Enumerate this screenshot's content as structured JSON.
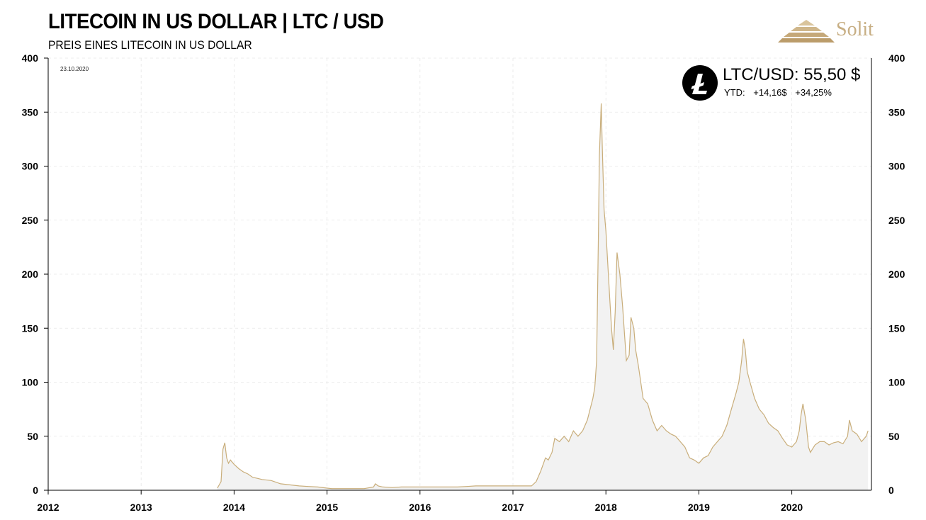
{
  "header": {
    "title": "LITECOIN IN US DOLLAR | LTC / USD",
    "subtitle": "PREIS EINES LITECOIN IN US DOLLAR",
    "date": "23.10.2020",
    "brand": "Solit"
  },
  "ticker": {
    "pair": "LTC/USD:",
    "price": "55,50 $",
    "ytd_label": "YTD:",
    "ytd_abs": "+14,16$",
    "ytd_pct": "+34,25%",
    "icon": "litecoin-icon"
  },
  "colors": {
    "line": "#c9ae7b",
    "area": "#f2f2f2",
    "grid": "#e6e6e6",
    "brand": "#c7ae83"
  },
  "chart_data": {
    "type": "area",
    "ylim": [
      0,
      400
    ],
    "xlim": [
      2012,
      2020.82
    ],
    "grid": true,
    "yticks": [
      0,
      50,
      100,
      150,
      200,
      250,
      300,
      350,
      400
    ],
    "xticks": [
      "2012",
      "2013",
      "2014",
      "2015",
      "2016",
      "2017",
      "2018",
      "2019",
      "2020"
    ],
    "series": [
      {
        "x": [
          2013.82,
          2013.86,
          2013.88,
          2013.9,
          2013.92,
          2013.94,
          2013.96,
          2014.0,
          2014.05,
          2014.1,
          2014.15,
          2014.2,
          2014.25,
          2014.3,
          2014.4,
          2014.5,
          2014.6,
          2014.7,
          2014.8,
          2014.9,
          2015.0,
          2015.05,
          2015.1,
          2015.2,
          2015.3,
          2015.4,
          2015.5,
          2015.52,
          2015.55,
          2015.6,
          2015.7,
          2015.8,
          2015.9,
          2016.0,
          2016.2,
          2016.4,
          2016.5,
          2016.6,
          2016.8,
          2017.0,
          2017.1,
          2017.2,
          2017.25,
          2017.3,
          2017.35,
          2017.38,
          2017.42,
          2017.45,
          2017.5,
          2017.55,
          2017.6,
          2017.65,
          2017.7,
          2017.75,
          2017.8,
          2017.83,
          2017.86,
          2017.88,
          2017.9,
          2017.92,
          2017.93,
          2017.95,
          2017.96,
          2017.97,
          2017.98,
          2017.99,
          2018.0,
          2018.02,
          2018.04,
          2018.06,
          2018.08,
          2018.1,
          2018.12,
          2018.15,
          2018.18,
          2018.2,
          2018.22,
          2018.25,
          2018.27,
          2018.3,
          2018.32,
          2018.35,
          2018.4,
          2018.45,
          2018.5,
          2018.55,
          2018.6,
          2018.65,
          2018.7,
          2018.75,
          2018.8,
          2018.85,
          2018.9,
          2018.95,
          2019.0,
          2019.05,
          2019.1,
          2019.15,
          2019.2,
          2019.25,
          2019.3,
          2019.35,
          2019.4,
          2019.43,
          2019.46,
          2019.48,
          2019.5,
          2019.52,
          2019.55,
          2019.6,
          2019.65,
          2019.7,
          2019.75,
          2019.8,
          2019.85,
          2019.9,
          2019.95,
          2020.0,
          2020.05,
          2020.08,
          2020.1,
          2020.12,
          2020.15,
          2020.18,
          2020.2,
          2020.25,
          2020.3,
          2020.35,
          2020.4,
          2020.45,
          2020.5,
          2020.55,
          2020.6,
          2020.62,
          2020.65,
          2020.7,
          2020.75,
          2020.8,
          2020.82
        ],
        "y": [
          2,
          8,
          38,
          44,
          30,
          25,
          28,
          24,
          20,
          17,
          15,
          12,
          11,
          10,
          9,
          6,
          5,
          4,
          3.5,
          3,
          2,
          1.5,
          1.5,
          1.5,
          1.5,
          1.5,
          3,
          6,
          4,
          3,
          2.5,
          3,
          3,
          3,
          3,
          3,
          3.5,
          4,
          4,
          4,
          4,
          4,
          8,
          18,
          30,
          28,
          35,
          48,
          45,
          50,
          45,
          55,
          50,
          55,
          65,
          75,
          85,
          95,
          120,
          240,
          310,
          358,
          320,
          290,
          260,
          250,
          240,
          210,
          180,
          150,
          130,
          165,
          220,
          200,
          170,
          145,
          120,
          125,
          160,
          150,
          130,
          115,
          85,
          80,
          65,
          55,
          60,
          55,
          52,
          50,
          45,
          40,
          30,
          28,
          25,
          30,
          32,
          40,
          45,
          50,
          60,
          75,
          90,
          100,
          120,
          140,
          130,
          110,
          100,
          85,
          75,
          70,
          62,
          58,
          55,
          48,
          42,
          40,
          45,
          55,
          70,
          80,
          65,
          40,
          35,
          42,
          45,
          45,
          42,
          44,
          45,
          43,
          50,
          65,
          55,
          52,
          45,
          50,
          55
        ]
      }
    ]
  }
}
